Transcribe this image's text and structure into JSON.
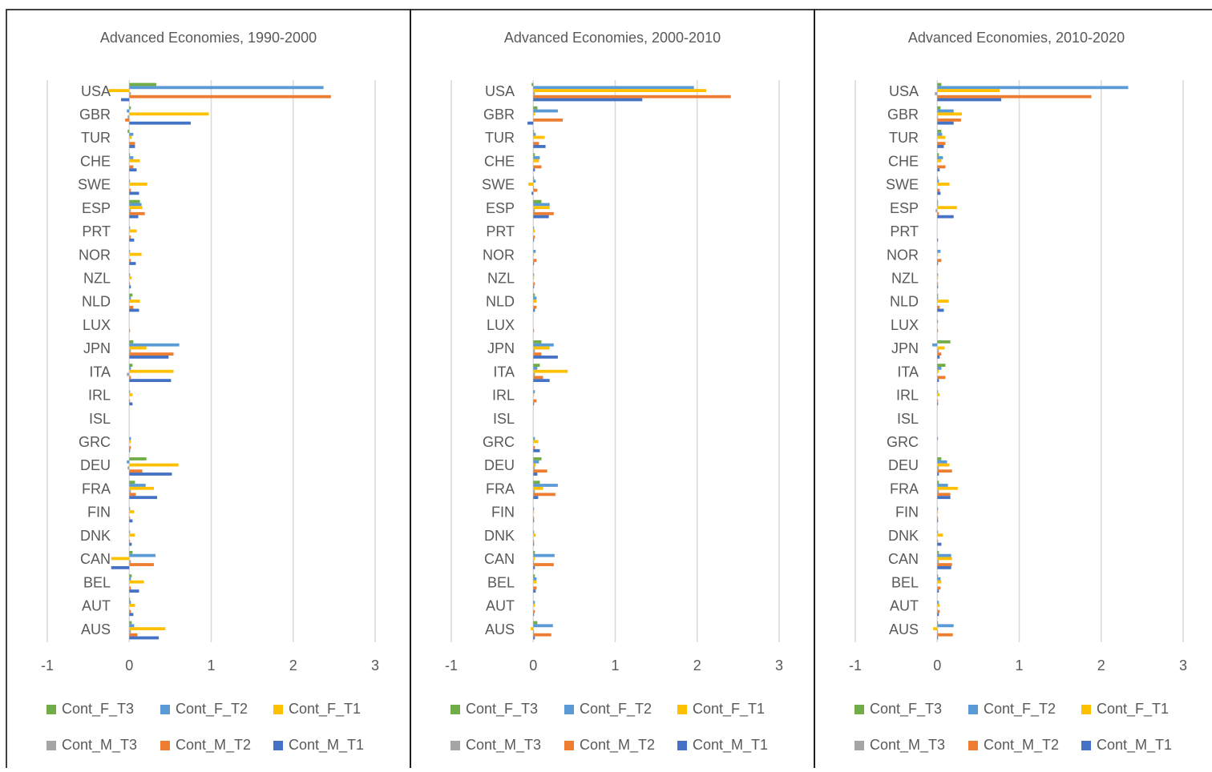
{
  "chart_data": [
    {
      "type": "bar",
      "orientation": "horizontal",
      "title": "Advanced Economies, 1990-2000",
      "categories": [
        "USA",
        "GBR",
        "TUR",
        "CHE",
        "SWE",
        "ESP",
        "PRT",
        "NOR",
        "NZL",
        "NLD",
        "LUX",
        "JPN",
        "ITA",
        "IRL",
        "ISL",
        "GRC",
        "DEU",
        "FRA",
        "FIN",
        "DNK",
        "CAN",
        "BEL",
        "AUT",
        "AUS"
      ],
      "series": [
        {
          "name": "Cont_F_T3",
          "color": "#70ad47",
          "values": [
            0.33,
            0.02,
            -0.02,
            0.01,
            0,
            0.13,
            0,
            0,
            0,
            0.04,
            0,
            0.05,
            0.04,
            0,
            0,
            0,
            0.21,
            0.07,
            0,
            0,
            0.04,
            0.03,
            0.01,
            0.03
          ]
        },
        {
          "name": "Cont_F_T2",
          "color": "#5b9bd5",
          "values": [
            2.37,
            -0.03,
            0.05,
            0.05,
            0.01,
            0.15,
            0.01,
            0.01,
            0.01,
            0.02,
            0,
            0.61,
            0.02,
            0.01,
            0,
            0.02,
            -0.03,
            0.2,
            0.01,
            0.01,
            0.32,
            0.02,
            0.02,
            0.06
          ]
        },
        {
          "name": "Cont_F_T1",
          "color": "#ffc000",
          "values": [
            -0.25,
            0.97,
            0.03,
            0.13,
            0.22,
            0.16,
            0.09,
            0.15,
            0.03,
            0.13,
            0,
            0.21,
            0.54,
            0.04,
            0,
            0.02,
            0.6,
            0.3,
            0.06,
            0.07,
            -0.22,
            0.18,
            0.07,
            0.44
          ]
        },
        {
          "name": "Cont_M_T3",
          "color": "#a5a5a5",
          "values": [
            0.02,
            -0.02,
            0,
            0,
            0,
            0.02,
            0,
            0,
            0,
            0,
            0,
            0.02,
            -0.03,
            0,
            0,
            0,
            -0.02,
            0.02,
            0,
            0,
            0.02,
            0,
            0,
            0.02
          ]
        },
        {
          "name": "Cont_M_T2",
          "color": "#ed7d31",
          "values": [
            2.46,
            -0.05,
            0.07,
            0.05,
            0.02,
            0.19,
            0.02,
            0.02,
            0.01,
            0.05,
            0.01,
            0.54,
            0.02,
            0.01,
            0,
            0.02,
            0.16,
            0.08,
            0.01,
            0.01,
            0.3,
            0.02,
            0.02,
            0.1
          ]
        },
        {
          "name": "Cont_M_T1",
          "color": "#4472c4",
          "values": [
            -0.1,
            0.75,
            0.07,
            0.09,
            0.12,
            0.11,
            0.06,
            0.08,
            0.02,
            0.12,
            0,
            0.48,
            0.51,
            0.04,
            0,
            0.01,
            0.52,
            0.34,
            0.04,
            0.03,
            -0.22,
            0.12,
            0.05,
            0.36
          ]
        }
      ],
      "xlim": [
        -1,
        3
      ],
      "xticks": [
        -1,
        0,
        1,
        2,
        3
      ],
      "grid": true
    },
    {
      "type": "bar",
      "orientation": "horizontal",
      "title": "Advanced Economies, 2000-2010",
      "categories": [
        "USA",
        "GBR",
        "TUR",
        "CHE",
        "SWE",
        "ESP",
        "PRT",
        "NOR",
        "NZL",
        "NLD",
        "LUX",
        "JPN",
        "ITA",
        "IRL",
        "ISL",
        "GRC",
        "DEU",
        "FRA",
        "FIN",
        "DNK",
        "CAN",
        "BEL",
        "AUT",
        "AUS"
      ],
      "series": [
        {
          "name": "Cont_F_T3",
          "color": "#70ad47",
          "values": [
            -0.02,
            0.05,
            0.01,
            0.02,
            0.01,
            0.1,
            0,
            0,
            0,
            0.02,
            0,
            0.1,
            0.08,
            0,
            0,
            0,
            0.1,
            0.08,
            0,
            0,
            0.02,
            0.02,
            0,
            0.05
          ]
        },
        {
          "name": "Cont_F_T2",
          "color": "#5b9bd5",
          "values": [
            1.96,
            0.3,
            0.03,
            0.08,
            0.03,
            0.2,
            0.01,
            0.03,
            0.01,
            0.04,
            0,
            0.25,
            0.05,
            0.02,
            0,
            0.02,
            0.07,
            0.3,
            0.01,
            0.01,
            0.26,
            0.04,
            0.02,
            0.24
          ]
        },
        {
          "name": "Cont_F_T1",
          "color": "#ffc000",
          "values": [
            2.11,
            0.02,
            0.14,
            0.07,
            -0.06,
            0.2,
            0.02,
            0.01,
            0.01,
            0.04,
            0,
            0.2,
            0.42,
            0.01,
            0,
            0.06,
            0.03,
            0.12,
            0.01,
            0.03,
            0.02,
            0.04,
            0.02,
            -0.03
          ]
        },
        {
          "name": "Cont_M_T3",
          "color": "#a5a5a5",
          "values": [
            0.02,
            0,
            0,
            0,
            0.01,
            0.02,
            0,
            0,
            0,
            0,
            0,
            0.02,
            0.02,
            0,
            0,
            0,
            0.02,
            0.02,
            0,
            0,
            0.01,
            0,
            0,
            0.01
          ]
        },
        {
          "name": "Cont_M_T2",
          "color": "#ed7d31",
          "values": [
            2.41,
            0.36,
            0.07,
            0.1,
            0.05,
            0.25,
            0.02,
            0.04,
            0.02,
            0.04,
            0.01,
            0.1,
            0.12,
            0.04,
            0,
            0.02,
            0.17,
            0.27,
            0.01,
            0.01,
            0.25,
            0.04,
            0.02,
            0.22
          ]
        },
        {
          "name": "Cont_M_T1",
          "color": "#4472c4",
          "values": [
            1.33,
            -0.07,
            0.15,
            0.02,
            -0.02,
            0.19,
            0.01,
            0.01,
            0.01,
            0.02,
            0,
            0.3,
            0.2,
            0.01,
            0,
            0.08,
            0.05,
            0.06,
            0.01,
            0.01,
            0.02,
            0.03,
            0.01,
            0.02
          ]
        }
      ],
      "xlim": [
        -1,
        3
      ],
      "xticks": [
        -1,
        0,
        1,
        2,
        3
      ],
      "grid": true
    },
    {
      "type": "bar",
      "orientation": "horizontal",
      "title": "Advanced Economies, 2010-2020",
      "categories": [
        "USA",
        "GBR",
        "TUR",
        "CHE",
        "SWE",
        "ESP",
        "PRT",
        "NOR",
        "NZL",
        "NLD",
        "LUX",
        "JPN",
        "ITA",
        "IRL",
        "ISL",
        "GRC",
        "DEU",
        "FRA",
        "FIN",
        "DNK",
        "CAN",
        "BEL",
        "AUT",
        "AUS"
      ],
      "series": [
        {
          "name": "Cont_F_T3",
          "color": "#70ad47",
          "values": [
            0.05,
            0.04,
            0.05,
            0.02,
            0.01,
            0.01,
            0,
            0,
            0,
            0.01,
            0,
            0.16,
            0.1,
            0,
            0,
            0,
            0.05,
            0.02,
            0,
            0,
            0.02,
            0.01,
            0,
            0.01
          ]
        },
        {
          "name": "Cont_F_T2",
          "color": "#5b9bd5",
          "values": [
            2.33,
            0.2,
            0.06,
            0.07,
            0.02,
            0.01,
            0,
            0.04,
            0.01,
            0.01,
            0.01,
            -0.06,
            0.05,
            0.01,
            0,
            0.01,
            0.12,
            0.13,
            0.01,
            0.01,
            0.17,
            0.04,
            0.02,
            0.2
          ]
        },
        {
          "name": "Cont_F_T1",
          "color": "#ffc000",
          "values": [
            0.76,
            0.3,
            0.1,
            0.05,
            0.15,
            0.24,
            0,
            0.01,
            0.01,
            0.14,
            0,
            0.09,
            0.02,
            0.03,
            0,
            0,
            0.15,
            0.25,
            0.01,
            0.07,
            0.18,
            0.05,
            0.03,
            -0.05
          ]
        },
        {
          "name": "Cont_M_T3",
          "color": "#a5a5a5",
          "values": [
            -0.03,
            0.01,
            0,
            0,
            0,
            -0.02,
            0,
            0,
            0,
            0,
            0,
            0.02,
            0,
            0,
            0,
            0,
            0.02,
            0.02,
            0,
            0,
            0.02,
            0,
            0,
            0.01
          ]
        },
        {
          "name": "Cont_M_T2",
          "color": "#ed7d31",
          "values": [
            1.88,
            0.29,
            0.1,
            0.1,
            0.03,
            0.02,
            0,
            0.05,
            0.01,
            0.03,
            0.01,
            0.05,
            0.1,
            0.01,
            0,
            0,
            0.18,
            0.16,
            0.01,
            0.01,
            0.18,
            0.04,
            0.03,
            0.19
          ]
        },
        {
          "name": "Cont_M_T1",
          "color": "#4472c4",
          "values": [
            0.78,
            0.2,
            0.08,
            0.03,
            0.04,
            0.2,
            0.01,
            0.01,
            0.01,
            0.08,
            0,
            0.03,
            0.02,
            0.01,
            0,
            0,
            0.02,
            0.16,
            0.01,
            0.05,
            0.17,
            0.02,
            0.02,
            0.01
          ]
        }
      ],
      "xlim": [
        -1,
        3
      ],
      "xticks": [
        -1,
        0,
        1,
        2,
        3
      ],
      "grid": true
    }
  ]
}
